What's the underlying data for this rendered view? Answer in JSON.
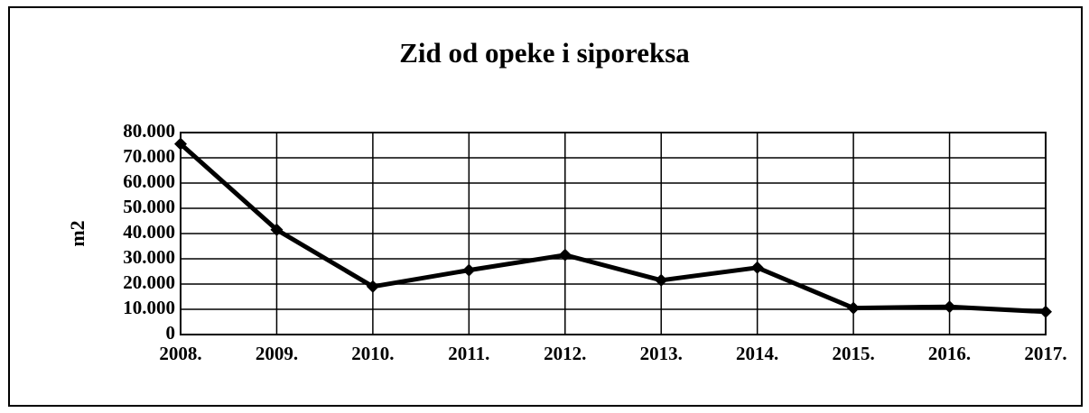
{
  "chart_data": {
    "type": "line",
    "title": "Zid od opeke i siporeksa",
    "y_label": "m2",
    "categories": [
      "2008.",
      "2009.",
      "2010.",
      "2011.",
      "2012.",
      "2013.",
      "2014.",
      "2015.",
      "2016.",
      "2017."
    ],
    "series": [
      {
        "name": "Zid od opeke i siporeksa",
        "color": "#000000",
        "values": [
          75500,
          41500,
          19000,
          25500,
          31500,
          21500,
          26500,
          10500,
          11000,
          9000
        ]
      }
    ],
    "ylim": [
      0,
      80000
    ],
    "yticks": [
      0,
      {
        "value": 10000,
        "label": "10.000"
      },
      {
        "value": 20000,
        "label": "20.000"
      },
      {
        "value": 30000,
        "label": "30.000"
      },
      {
        "value": 40000,
        "label": "40.000"
      },
      {
        "value": 50000,
        "label": "50.000"
      },
      {
        "value": 60000,
        "label": "60.000"
      },
      {
        "value": 70000,
        "label": "70.000"
      },
      {
        "value": 80000,
        "label": "80.000"
      }
    ],
    "grid": true
  }
}
